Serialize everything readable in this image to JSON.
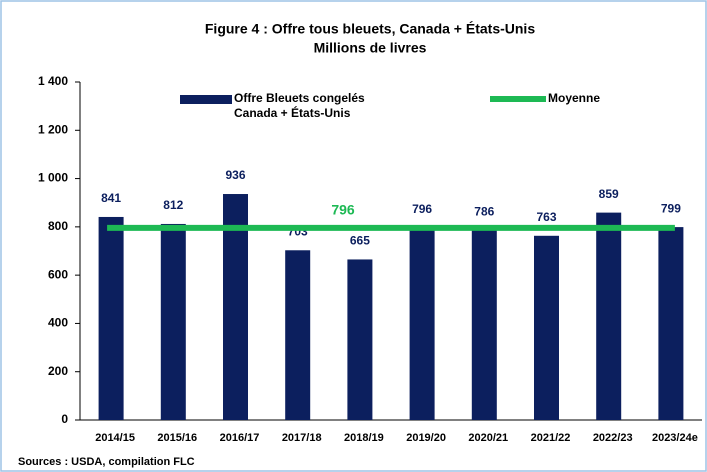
{
  "chart_data": {
    "type": "bar",
    "title": "Figure 4 : Offre tous bleuets, Canada + États-Unis",
    "subtitle": "Millions de livres",
    "categories": [
      "2014/15",
      "2015/16",
      "2016/17",
      "2017/18",
      "2018/19",
      "2019/20",
      "2020/21",
      "2021/22",
      "2022/23",
      "2023/24e"
    ],
    "series": [
      {
        "name": "Offre Bleuets congelés Canada + États-Unis",
        "color": "#0c1f5e",
        "values": [
          841,
          812,
          936,
          703,
          665,
          796,
          786,
          763,
          859,
          799
        ]
      }
    ],
    "average": {
      "name": "Moyenne",
      "value": 796,
      "color": "#1db954"
    },
    "ylim": [
      0,
      1400
    ],
    "yticks": [
      0,
      200,
      400,
      600,
      800,
      {
        "value": 1000,
        "label": "1 000"
      },
      {
        "value": 1200,
        "label": "1 200"
      },
      {
        "value": 1400,
        "label": "1 400"
      }
    ],
    "grid": false,
    "source": "Sources : USDA, compilation FLC"
  }
}
